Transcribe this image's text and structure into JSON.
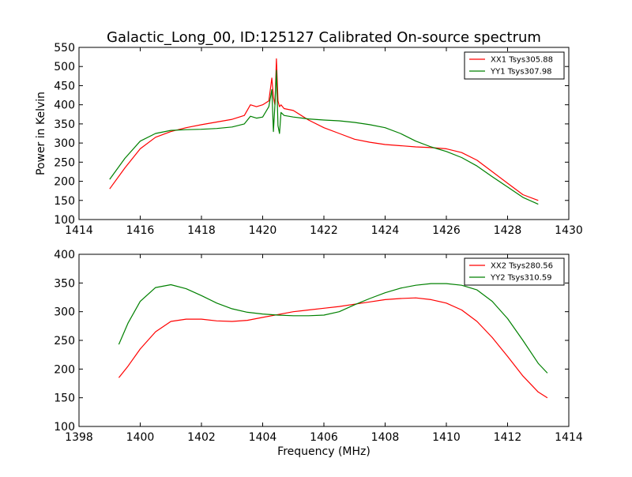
{
  "figure": {
    "title": "Galactic_Long_00, ID:125127 Calibrated On-source spectrum"
  },
  "chart_data": [
    {
      "type": "line",
      "title": "Galactic_Long_00, ID:125127 Calibrated On-source spectrum",
      "xlabel": "",
      "ylabel": "Power in Kelvin",
      "xlim": [
        1414,
        1430
      ],
      "ylim": [
        100,
        550
      ],
      "xticks": [
        "1414",
        "1416",
        "1418",
        "1420",
        "1422",
        "1424",
        "1426",
        "1428",
        "1430"
      ],
      "yticks": [
        "100",
        "150",
        "200",
        "250",
        "300",
        "350",
        "400",
        "450",
        "500",
        "550"
      ],
      "grid": false,
      "legend": "top-right",
      "series": [
        {
          "name": "XX1 Tsys305.88",
          "color": "#ff0000",
          "x": [
            1415.0,
            1415.5,
            1416.0,
            1416.5,
            1417.0,
            1417.5,
            1418.0,
            1418.5,
            1419.0,
            1419.4,
            1419.6,
            1419.8,
            1420.0,
            1420.2,
            1420.3,
            1420.35,
            1420.4,
            1420.45,
            1420.5,
            1420.55,
            1420.6,
            1420.7,
            1421.0,
            1421.5,
            1422.0,
            1422.5,
            1423.0,
            1423.5,
            1424.0,
            1424.5,
            1425.0,
            1425.5,
            1426.0,
            1426.5,
            1427.0,
            1427.5,
            1428.0,
            1428.5,
            1429.0
          ],
          "y": [
            180,
            235,
            285,
            315,
            330,
            340,
            348,
            355,
            362,
            372,
            400,
            395,
            400,
            410,
            470,
            420,
            400,
            520,
            410,
            395,
            400,
            390,
            385,
            360,
            340,
            325,
            310,
            302,
            296,
            293,
            290,
            288,
            285,
            275,
            255,
            225,
            195,
            165,
            150
          ]
        },
        {
          "name": "YY1 Tsys307.98",
          "color": "#008000",
          "x": [
            1415.0,
            1415.5,
            1416.0,
            1416.5,
            1417.0,
            1417.5,
            1418.0,
            1418.5,
            1419.0,
            1419.4,
            1419.6,
            1419.8,
            1420.0,
            1420.2,
            1420.3,
            1420.35,
            1420.4,
            1420.45,
            1420.5,
            1420.55,
            1420.6,
            1420.7,
            1421.0,
            1421.5,
            1422.0,
            1422.5,
            1423.0,
            1423.5,
            1424.0,
            1424.5,
            1425.0,
            1425.5,
            1426.0,
            1426.5,
            1427.0,
            1427.5,
            1428.0,
            1428.5,
            1429.0
          ],
          "y": [
            205,
            260,
            305,
            325,
            333,
            335,
            336,
            338,
            342,
            350,
            370,
            365,
            368,
            395,
            440,
            330,
            400,
            490,
            345,
            325,
            380,
            372,
            368,
            363,
            360,
            358,
            354,
            348,
            340,
            325,
            305,
            290,
            278,
            262,
            240,
            212,
            185,
            158,
            140
          ]
        }
      ]
    },
    {
      "type": "line",
      "title": "",
      "xlabel": "Frequency (MHz)",
      "ylabel": "",
      "xlim": [
        1398,
        1414
      ],
      "ylim": [
        100,
        400
      ],
      "xticks": [
        "1398",
        "1400",
        "1402",
        "1404",
        "1406",
        "1408",
        "1410",
        "1412",
        "1414"
      ],
      "yticks": [
        "100",
        "150",
        "200",
        "250",
        "300",
        "350",
        "400"
      ],
      "grid": false,
      "legend": "top-right",
      "series": [
        {
          "name": "XX2 Tsys280.56",
          "color": "#ff0000",
          "x": [
            1399.3,
            1399.6,
            1400.0,
            1400.5,
            1401.0,
            1401.5,
            1402.0,
            1402.5,
            1403.0,
            1403.5,
            1404.0,
            1404.5,
            1405.0,
            1405.5,
            1406.0,
            1406.5,
            1407.0,
            1407.5,
            1408.0,
            1408.5,
            1409.0,
            1409.5,
            1410.0,
            1410.5,
            1411.0,
            1411.5,
            1412.0,
            1412.5,
            1413.0,
            1413.3
          ],
          "y": [
            185,
            205,
            235,
            265,
            283,
            287,
            287,
            284,
            283,
            285,
            290,
            295,
            300,
            303,
            306,
            309,
            313,
            317,
            321,
            323,
            324,
            321,
            315,
            303,
            283,
            255,
            222,
            188,
            160,
            150
          ]
        },
        {
          "name": "YY2 Tsys310.59",
          "color": "#008000",
          "x": [
            1399.3,
            1399.6,
            1400.0,
            1400.5,
            1401.0,
            1401.5,
            1402.0,
            1402.5,
            1403.0,
            1403.5,
            1404.0,
            1404.5,
            1405.0,
            1405.5,
            1406.0,
            1406.5,
            1407.0,
            1407.5,
            1408.0,
            1408.5,
            1409.0,
            1409.5,
            1410.0,
            1410.5,
            1411.0,
            1411.5,
            1412.0,
            1412.5,
            1413.0,
            1413.3
          ],
          "y": [
            243,
            280,
            318,
            342,
            347,
            340,
            328,
            315,
            305,
            299,
            296,
            294,
            293,
            293,
            294,
            300,
            312,
            323,
            333,
            341,
            346,
            349,
            349,
            346,
            338,
            318,
            288,
            250,
            210,
            193
          ]
        }
      ]
    }
  ]
}
